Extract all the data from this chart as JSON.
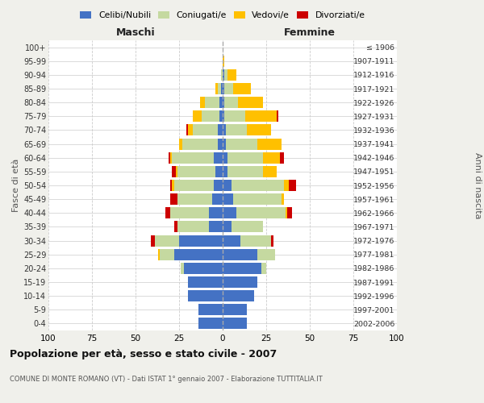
{
  "age_groups": [
    "0-4",
    "5-9",
    "10-14",
    "15-19",
    "20-24",
    "25-29",
    "30-34",
    "35-39",
    "40-44",
    "45-49",
    "50-54",
    "55-59",
    "60-64",
    "65-69",
    "70-74",
    "75-79",
    "80-84",
    "85-89",
    "90-94",
    "95-99",
    "100+"
  ],
  "birth_years": [
    "2002-2006",
    "1997-2001",
    "1992-1996",
    "1987-1991",
    "1982-1986",
    "1977-1981",
    "1972-1976",
    "1967-1971",
    "1962-1966",
    "1957-1961",
    "1952-1956",
    "1947-1951",
    "1942-1946",
    "1937-1941",
    "1932-1936",
    "1927-1931",
    "1922-1926",
    "1917-1921",
    "1912-1916",
    "1907-1911",
    "≤ 1906"
  ],
  "maschi": {
    "celibe": [
      14,
      14,
      20,
      20,
      22,
      28,
      25,
      8,
      8,
      6,
      5,
      4,
      5,
      3,
      3,
      2,
      2,
      1,
      0,
      0,
      0
    ],
    "coniugato": [
      0,
      0,
      0,
      0,
      2,
      8,
      14,
      18,
      22,
      20,
      23,
      22,
      24,
      20,
      14,
      10,
      8,
      2,
      1,
      0,
      0
    ],
    "vedovo": [
      0,
      0,
      0,
      0,
      0,
      1,
      0,
      0,
      0,
      0,
      1,
      1,
      1,
      2,
      3,
      5,
      3,
      1,
      0,
      0,
      0
    ],
    "divorziato": [
      0,
      0,
      0,
      0,
      0,
      0,
      2,
      2,
      3,
      4,
      1,
      2,
      1,
      0,
      1,
      0,
      0,
      0,
      0,
      0,
      0
    ]
  },
  "femmine": {
    "nubile": [
      14,
      14,
      18,
      20,
      22,
      20,
      10,
      5,
      8,
      6,
      5,
      3,
      3,
      2,
      2,
      1,
      1,
      1,
      1,
      0,
      0
    ],
    "coniugata": [
      0,
      0,
      0,
      0,
      3,
      10,
      18,
      18,
      28,
      28,
      30,
      20,
      20,
      18,
      12,
      12,
      8,
      5,
      2,
      0,
      0
    ],
    "vedova": [
      0,
      0,
      0,
      0,
      0,
      0,
      0,
      0,
      1,
      1,
      3,
      8,
      10,
      14,
      14,
      18,
      14,
      10,
      5,
      1,
      0
    ],
    "divorziata": [
      0,
      0,
      0,
      0,
      0,
      0,
      1,
      0,
      3,
      0,
      4,
      0,
      2,
      0,
      0,
      1,
      0,
      0,
      0,
      0,
      0
    ]
  },
  "colors": {
    "celibe": "#4472c4",
    "coniugato": "#c5d9a0",
    "vedovo": "#ffc000",
    "divorziato": "#cc0000"
  },
  "xlim": 100,
  "title": "Popolazione per età, sesso e stato civile - 2007",
  "subtitle": "COMUNE DI MONTE ROMANO (VT) - Dati ISTAT 1° gennaio 2007 - Elaborazione TUTTITALIA.IT",
  "ylabel": "Fasce di età",
  "ylabel_right": "Anni di nascita",
  "xlabel_left": "Maschi",
  "xlabel_right": "Femmine",
  "legend_labels": [
    "Celibi/Nubili",
    "Coniugati/e",
    "Vedovi/e",
    "Divorziati/e"
  ],
  "legend_colors": [
    "#4472c4",
    "#c5d9a0",
    "#ffc000",
    "#cc0000"
  ],
  "bg_color": "#f0f0eb",
  "plot_bg": "#ffffff",
  "xtick_vals": [
    -100,
    -75,
    -50,
    -25,
    0,
    25,
    50,
    75,
    100
  ]
}
